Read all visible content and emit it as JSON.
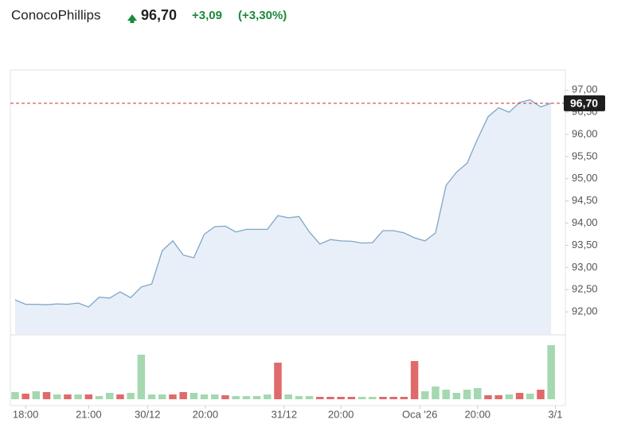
{
  "header": {
    "name": "ConocoPhillips",
    "price": "96,70",
    "change": "+3,09",
    "change_pct": "(+3,30%)"
  },
  "chart_data": [
    {
      "type": "area",
      "x": [
        0,
        1,
        2,
        3,
        4,
        5,
        6,
        7,
        8,
        9,
        10,
        11,
        12,
        13,
        14,
        15,
        16,
        17,
        18,
        19,
        20,
        21,
        22,
        23,
        24,
        25,
        26,
        27,
        28,
        29,
        30,
        31,
        32,
        33,
        34,
        35,
        36,
        37,
        38,
        39,
        40,
        41,
        42,
        43,
        44,
        45,
        46,
        47,
        48,
        49,
        50,
        51
      ],
      "values": [
        92.27,
        92.17,
        92.17,
        92.16,
        92.18,
        92.17,
        92.2,
        92.11,
        92.33,
        92.31,
        92.45,
        92.32,
        92.56,
        92.63,
        93.38,
        93.6,
        93.28,
        93.22,
        93.75,
        93.92,
        93.93,
        93.8,
        93.86,
        93.86,
        93.86,
        94.17,
        94.12,
        94.15,
        93.8,
        93.53,
        93.63,
        93.6,
        93.59,
        93.55,
        93.56,
        93.83,
        93.83,
        93.78,
        93.67,
        93.6,
        93.78,
        94.85,
        95.15,
        95.35,
        95.9,
        96.4,
        96.6,
        96.5,
        96.72,
        96.78,
        96.62,
        96.7
      ],
      "color": "#7ea6c8",
      "fill": "#e8eff8",
      "xlim": [
        -0.45,
        52.35
      ],
      "ylim": [
        91.5,
        97.38
      ],
      "yticks": [
        {
          "value": 92,
          "label": "92,00"
        },
        {
          "value": 92.5,
          "label": "92,50"
        },
        {
          "value": 93,
          "label": "93,00"
        },
        {
          "value": 93.5,
          "label": "93,50"
        },
        {
          "value": 94,
          "label": "94,00"
        },
        {
          "value": 94.5,
          "label": "94,50"
        },
        {
          "value": 95,
          "label": "95,00"
        },
        {
          "value": 95.5,
          "label": "95,50"
        },
        {
          "value": 96,
          "label": "96,00"
        },
        {
          "value": 96.5,
          "label": "96,50"
        },
        {
          "value": 97,
          "label": "97,00"
        }
      ],
      "last_value": {
        "value": 96.7,
        "label": "96,70"
      },
      "last_line_color": "#c0392b"
    },
    {
      "type": "bar",
      "x": [
        0,
        1,
        2,
        3,
        4,
        5,
        6,
        7,
        8,
        9,
        10,
        11,
        12,
        13,
        14,
        15,
        16,
        17,
        18,
        19,
        20,
        21,
        22,
        23,
        24,
        25,
        26,
        27,
        28,
        29,
        30,
        31,
        32,
        33,
        34,
        35,
        36,
        37,
        38,
        39,
        40,
        41,
        42,
        43,
        44,
        45,
        46,
        47,
        48,
        49,
        50,
        51
      ],
      "values": [
        9,
        7,
        10,
        9,
        6,
        6,
        6,
        6,
        4,
        8,
        6,
        8,
        56,
        6,
        6,
        6,
        9,
        8,
        6,
        6,
        5,
        4,
        4,
        4,
        6,
        46,
        6,
        4,
        4,
        3,
        3,
        3,
        3,
        3,
        3,
        3,
        3,
        3,
        48,
        10,
        16,
        12,
        8,
        12,
        14,
        5,
        5,
        6,
        8,
        7,
        12,
        68
      ],
      "colors": [
        "#a5d8b0",
        "#e06a6a",
        "#a5d8b0",
        "#e06a6a",
        "#a5d8b0",
        "#e06a6a",
        "#a5d8b0",
        "#e06a6a",
        "#a5d8b0",
        "#a5d8b0",
        "#e06a6a",
        "#a5d8b0",
        "#a5d8b0",
        "#a5d8b0",
        "#a5d8b0",
        "#e06a6a",
        "#e06a6a",
        "#a5d8b0",
        "#a5d8b0",
        "#a5d8b0",
        "#e06a6a",
        "#a5d8b0",
        "#a5d8b0",
        "#a5d8b0",
        "#a5d8b0",
        "#e06a6a",
        "#a5d8b0",
        "#a5d8b0",
        "#a5d8b0",
        "#e06a6a",
        "#e06a6a",
        "#e06a6a",
        "#e06a6a",
        "#a5d8b0",
        "#a5d8b0",
        "#e06a6a",
        "#e06a6a",
        "#e06a6a",
        "#e06a6a",
        "#a5d8b0",
        "#a5d8b0",
        "#a5d8b0",
        "#a5d8b0",
        "#a5d8b0",
        "#a5d8b0",
        "#e06a6a",
        "#e06a6a",
        "#a5d8b0",
        "#e06a6a",
        "#a5d8b0",
        "#e06a6a",
        "#a5d8b0"
      ],
      "xlim": [
        -0.45,
        52.35
      ],
      "ylim": [
        0,
        77
      ],
      "xticks": [
        {
          "value": 1,
          "label": "18:00"
        },
        {
          "value": 7,
          "label": "21:00"
        },
        {
          "value": 12.6,
          "label": "30/12"
        },
        {
          "value": 18.1,
          "label": "20:00"
        },
        {
          "value": 25.6,
          "label": "31/12"
        },
        {
          "value": 31,
          "label": "20:00"
        },
        {
          "value": 38.5,
          "label": "Oca '26"
        },
        {
          "value": 44,
          "label": "20:00"
        },
        {
          "value": 51.4,
          "label": "3/1"
        }
      ]
    }
  ]
}
